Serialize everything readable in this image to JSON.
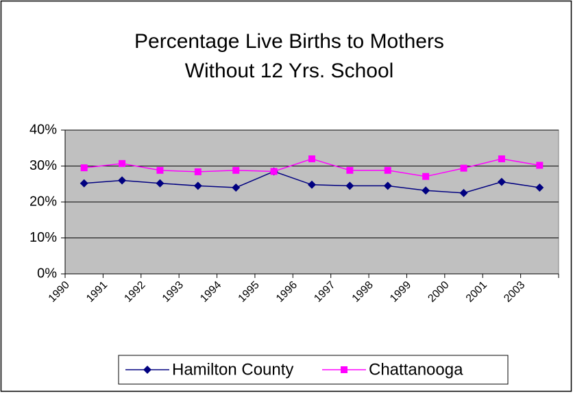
{
  "chart_data": {
    "type": "line",
    "title": [
      "Percentage Live Births to Mothers",
      "Without 12 Yrs. School"
    ],
    "categories": [
      "1990",
      "1991",
      "1992",
      "1993",
      "1994",
      "1995",
      "1996",
      "1997",
      "1998",
      "1999",
      "2000",
      "2001",
      "2003"
    ],
    "tick_categories": [
      "1990",
      "1991",
      "1992",
      "1993",
      "1994",
      "1995",
      "1996",
      "1997",
      "1998",
      "1999",
      "2000",
      "2001",
      "2003"
    ],
    "series": [
      {
        "name": "Hamilton County",
        "color": "#000080",
        "marker": "diamond",
        "values": [
          25.2,
          26,
          25.2,
          24.5,
          24,
          28.5,
          24.8,
          24.5,
          24.5,
          23.2,
          22.5,
          25.6,
          24
        ]
      },
      {
        "name": "Chattanooga",
        "color": "#ff00ff",
        "marker": "square",
        "values": [
          29.5,
          30.7,
          28.8,
          28.4,
          28.8,
          28.5,
          32,
          28.8,
          28.8,
          27.1,
          29.4,
          32,
          30.2
        ]
      }
    ],
    "ylim": [
      0,
      40
    ],
    "yticks": [
      {
        "value": 0,
        "label": "0%"
      },
      {
        "value": 10,
        "label": "10%"
      },
      {
        "value": 20,
        "label": "20%"
      },
      {
        "value": 30,
        "label": "30%"
      },
      {
        "value": 40,
        "label": "40%"
      }
    ],
    "grid": true,
    "legend": "bottom",
    "plot_color": "#c0c0c0"
  }
}
